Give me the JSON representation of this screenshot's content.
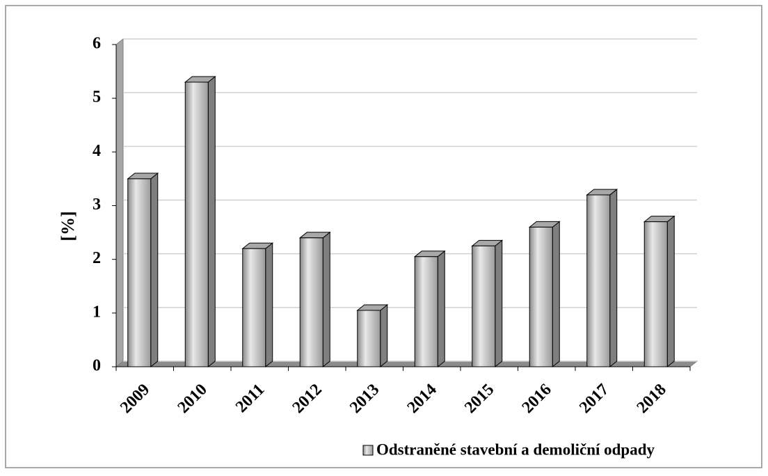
{
  "chart_data": {
    "type": "bar3d",
    "ylabel": "[%]",
    "categories": [
      "2009",
      "2010",
      "2011",
      "2012",
      "2013",
      "2014",
      "2015",
      "2016",
      "2017",
      "2018"
    ],
    "series": [
      {
        "name": "Odstraněné stavební a demoliční odpady",
        "color": "#c0c0c0",
        "values": [
          3.5,
          5.3,
          2.2,
          2.4,
          1.05,
          2.05,
          2.25,
          2.6,
          3.2,
          2.7
        ]
      }
    ],
    "ylim": [
      0,
      6
    ],
    "yticks": [
      0,
      1,
      2,
      3,
      4,
      5,
      6
    ],
    "grid": true,
    "legend": "bottom-right"
  }
}
